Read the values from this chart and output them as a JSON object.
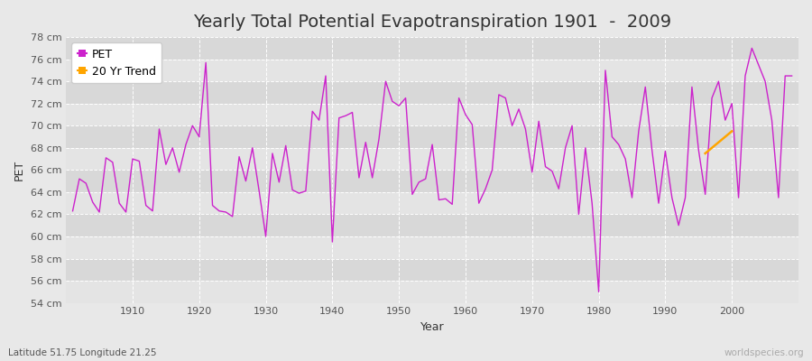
{
  "title": "Yearly Total Potential Evapotranspiration 1901  -  2009",
  "xlabel": "Year",
  "ylabel": "PET",
  "footer_left": "Latitude 51.75 Longitude 21.25",
  "footer_right": "worldspecies.org",
  "pet_color": "#cc22cc",
  "trend_color": "#FFA500",
  "ylim": [
    54,
    78
  ],
  "xlim_min": 1901,
  "xlim_max": 2009,
  "ytick_step": 2,
  "years": [
    1901,
    1902,
    1903,
    1904,
    1905,
    1906,
    1907,
    1908,
    1909,
    1910,
    1911,
    1912,
    1913,
    1914,
    1915,
    1916,
    1917,
    1918,
    1919,
    1920,
    1921,
    1922,
    1923,
    1924,
    1925,
    1926,
    1927,
    1928,
    1929,
    1930,
    1931,
    1932,
    1933,
    1934,
    1935,
    1936,
    1937,
    1938,
    1939,
    1940,
    1941,
    1942,
    1943,
    1944,
    1945,
    1946,
    1947,
    1948,
    1949,
    1950,
    1951,
    1952,
    1953,
    1954,
    1955,
    1956,
    1957,
    1958,
    1959,
    1960,
    1961,
    1962,
    1963,
    1964,
    1965,
    1966,
    1967,
    1968,
    1969,
    1970,
    1971,
    1972,
    1973,
    1974,
    1975,
    1976,
    1977,
    1978,
    1979,
    1980,
    1981,
    1982,
    1983,
    1984,
    1985,
    1986,
    1987,
    1988,
    1989,
    1990,
    1991,
    1992,
    1993,
    1994,
    1995,
    1996,
    1997,
    1998,
    1999,
    2000,
    2001,
    2002,
    2003,
    2004,
    2005,
    2006,
    2007,
    2008,
    2009
  ],
  "pet_values": [
    62.3,
    65.2,
    64.8,
    63.1,
    62.2,
    67.1,
    66.7,
    63.0,
    62.2,
    67.0,
    66.8,
    62.8,
    62.3,
    69.7,
    66.5,
    68.0,
    65.8,
    68.3,
    70.0,
    69.0,
    75.7,
    62.8,
    62.3,
    62.2,
    61.8,
    67.2,
    65.0,
    68.0,
    64.1,
    60.0,
    67.5,
    64.9,
    68.2,
    64.2,
    63.9,
    64.1,
    71.3,
    70.5,
    74.5,
    59.5,
    70.7,
    70.9,
    71.2,
    65.3,
    68.5,
    65.3,
    68.8,
    74.0,
    72.2,
    71.8,
    72.5,
    63.8,
    64.9,
    65.2,
    68.3,
    63.3,
    63.4,
    62.9,
    72.5,
    71.0,
    70.1,
    63.0,
    64.3,
    66.0,
    72.8,
    72.5,
    70.0,
    71.5,
    69.7,
    65.8,
    70.4,
    66.3,
    65.9,
    64.3,
    68.0,
    70.0,
    62.0,
    68.0,
    63.0,
    55.0,
    75.0,
    69.0,
    68.3,
    67.0,
    63.5,
    69.5,
    73.5,
    67.8,
    63.0,
    67.7,
    63.5,
    61.0,
    63.5,
    73.5,
    67.8,
    63.8,
    72.5,
    74.0,
    70.5,
    72.0,
    63.5,
    74.5,
    77.0,
    75.5,
    74.0,
    70.5,
    63.5,
    74.5,
    74.5
  ],
  "trend_years": [
    1996,
    1997,
    1998,
    1999,
    2000
  ],
  "trend_values": [
    67.5,
    68.0,
    68.5,
    69.0,
    69.5
  ],
  "bg_color": "#e8e8e8",
  "plot_bg_light": "#e4e4e4",
  "plot_bg_dark": "#d8d8d8",
  "grid_color": "#ffffff",
  "title_fontsize": 14,
  "tick_fontsize": 8,
  "legend_fontsize": 9
}
